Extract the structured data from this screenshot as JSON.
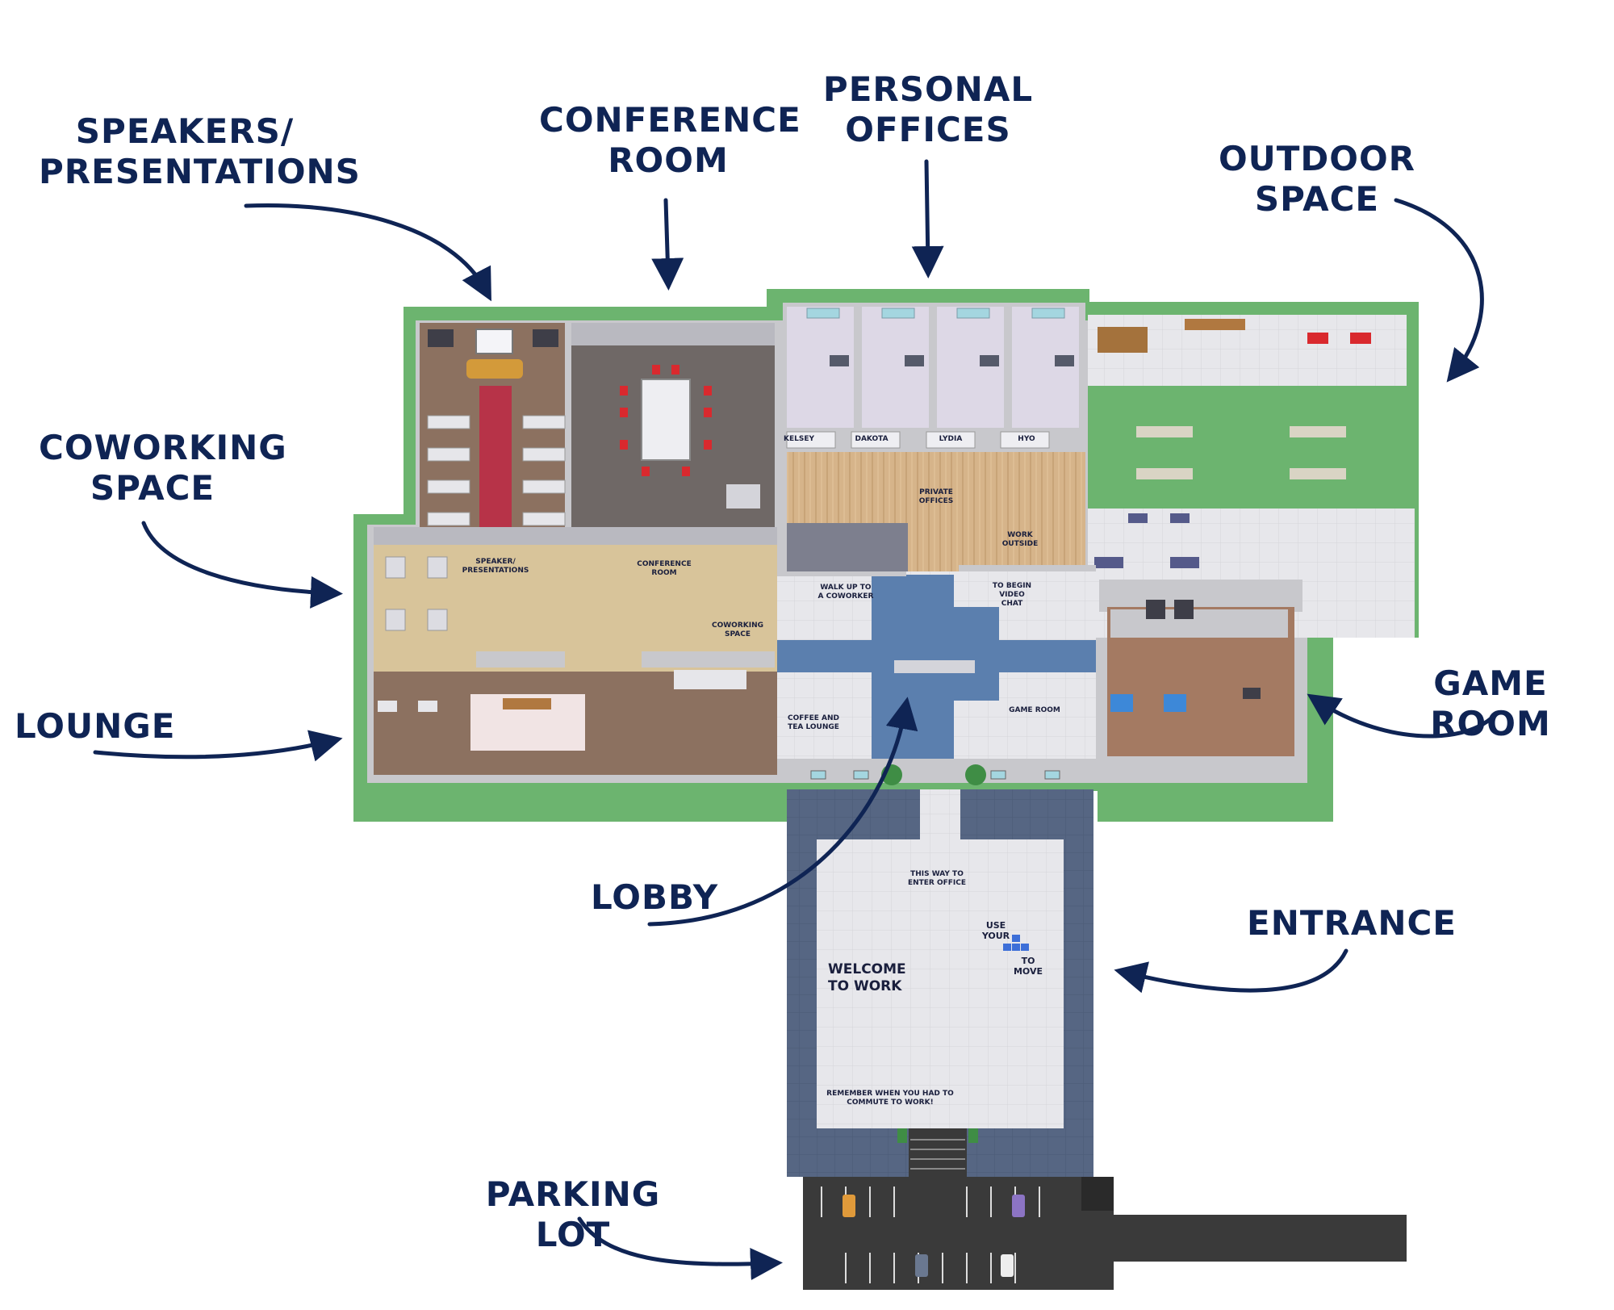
{
  "callouts": {
    "speakers": "SPEAKERS/\nPRESENTATIONS",
    "conference": "CONFERENCE\nROOM",
    "personal": "PERSONAL\nOFFICES",
    "outdoor": "OUTDOOR\nSPACE",
    "coworking": "COWORKING\nSPACE",
    "lounge": "LOUNGE",
    "game": "GAME ROOM",
    "lobby": "LOBBY",
    "entrance": "ENTRANCE",
    "parking": "PARKING LOT"
  },
  "map_labels": {
    "speakers": [
      "SPEAKER/",
      "PRESENTATIONS"
    ],
    "conference": [
      "CONFERENCE",
      "ROOM"
    ],
    "coworking": [
      "COWORKING",
      "SPACE"
    ],
    "private": [
      "PRIVATE",
      "OFFICES"
    ],
    "work_outside": [
      "WORK",
      "OUTSIDE"
    ],
    "walk_up": [
      "WALK UP TO",
      "A COWORKER"
    ],
    "video_chat": [
      "TO BEGIN",
      "VIDEO",
      "CHAT"
    ],
    "coffee": [
      "COFFEE AND",
      "TEA LOUNGE"
    ],
    "game_room": [
      "GAME ROOM"
    ],
    "this_way": [
      "THIS WAY TO",
      "ENTER OFFICE"
    ],
    "use_your": [
      "USE",
      "YOUR"
    ],
    "to_move": [
      "TO",
      "MOVE"
    ],
    "welcome": [
      "WELCOME",
      "TO WORK"
    ],
    "remember": [
      "REMEMBER WHEN YOU HAD TO",
      "COMMUTE TO WORK!"
    ]
  },
  "office_names": [
    "KELSEY",
    "DAKOTA",
    "LYDIA",
    "HYO"
  ],
  "colors": {
    "navy": "#0f2454",
    "grass": "#6cb46f",
    "wall": "#c8c8cc",
    "carpet_tan": "#d8c49a",
    "floor_brown": "#8c7160",
    "conference_floor": "#6f6866",
    "office_lavender": "#ddd8e6",
    "wood": "#d6b48a",
    "lobby_blue": "#5b7fae",
    "tile": "#e6e6ea",
    "entrance_slate": "#566683",
    "asphalt": "#3a3a3a",
    "red_carpet": "#b73348"
  }
}
